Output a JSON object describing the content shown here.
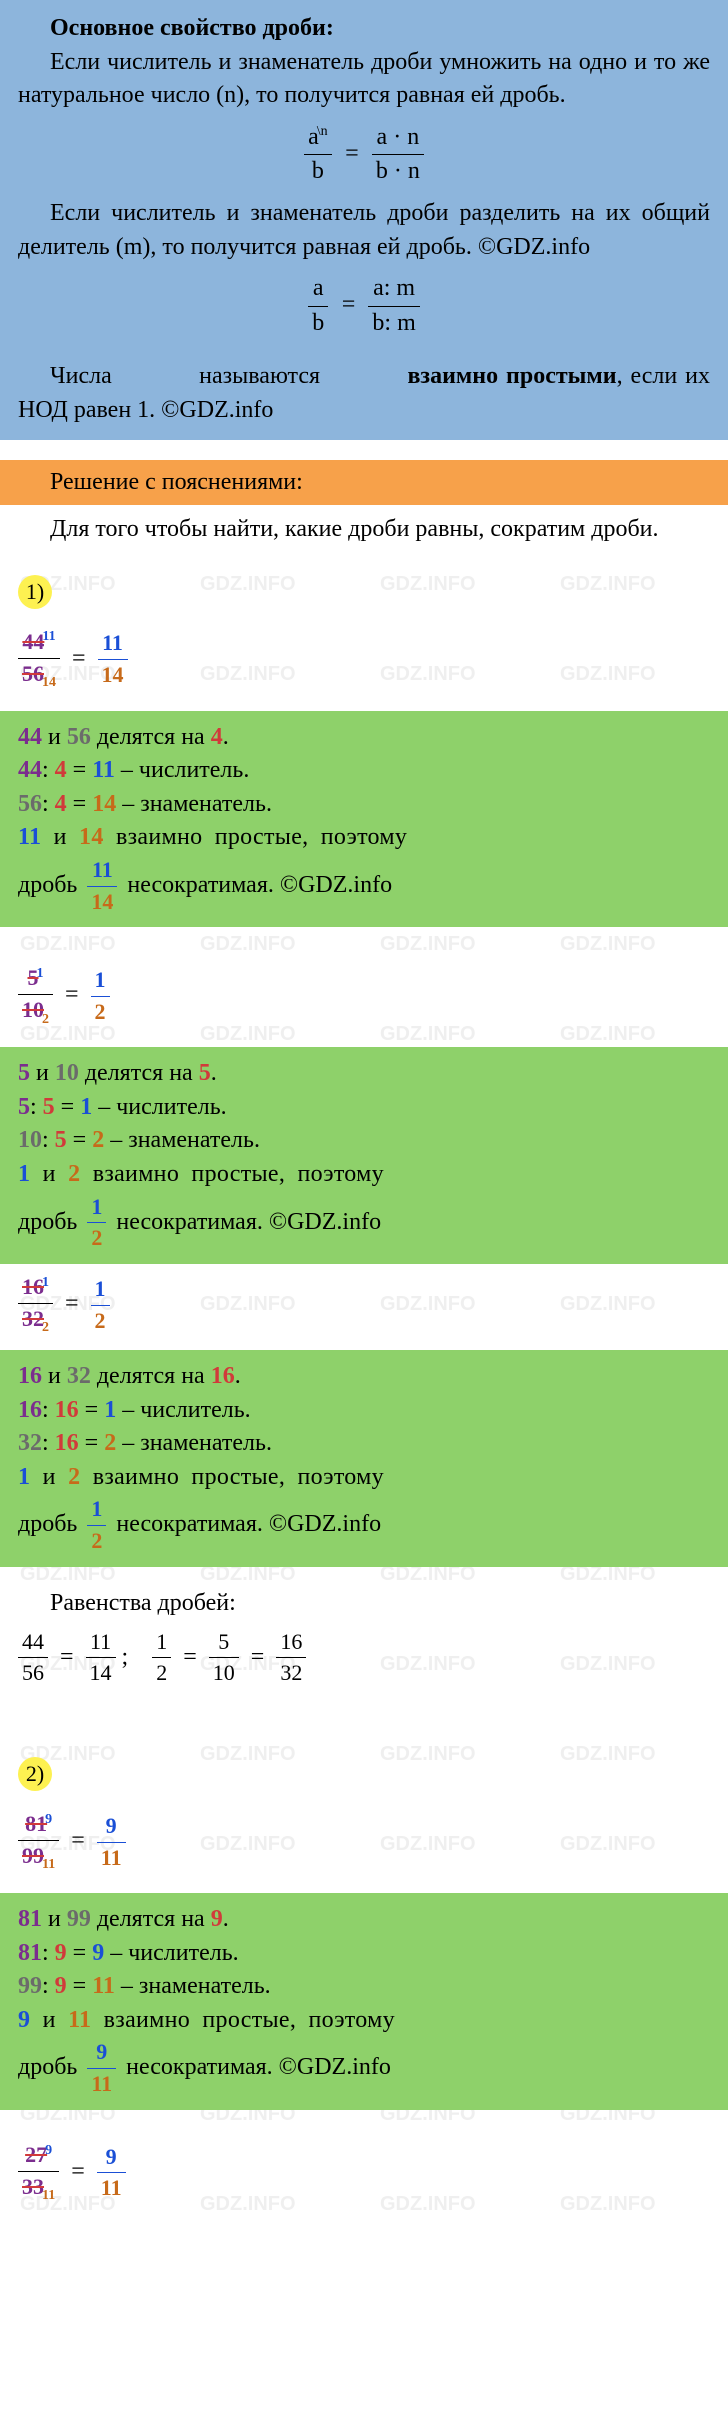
{
  "blue": {
    "heading": "Основное свойство дроби:",
    "p1": "Если числитель и знаменатель дроби умножить на одно и то же натуральное число (n), то получится равная ей дробь.",
    "formula1": {
      "a": "a",
      "b": "b",
      "expn": "\\n",
      "right_num": "a · n",
      "right_den": "b · n"
    },
    "p2": "Если числитель и знаменатель дроби разделить на их общий делитель (m), то получится равная ей дробь. ©GDZ.info",
    "formula2": {
      "left_num": "a",
      "left_den": "b",
      "right_num": "a: m",
      "right_den": "b: m"
    },
    "p3_pre": "Числа",
    "p3_mid": "называются",
    "p3_bold": "взаимно простыми",
    "p3_after": ", если их НОД равен 1. ©GDZ.info"
  },
  "orange": {
    "title": "Решение с пояснениями:"
  },
  "intro": "Для того чтобы найти, какие дроби равны, сократим дроби.",
  "item1": {
    "label": "1)",
    "frac1": {
      "num_strike": "44",
      "num_sup": "11",
      "den_strike": "56",
      "den_sub": "14",
      "eq_num": "11",
      "eq_den": "14"
    },
    "g1_l1_a": "44",
    "g1_l1_b": "56",
    "g1_l1_txt": "делятся на",
    "g1_l1_d": "4",
    "g1_l2_a": "44",
    "g1_l2_d": "4",
    "g1_l2_r": "11",
    "g1_l2_suffix": "– числитель.",
    "g1_l3_a": "56",
    "g1_l3_d": "4",
    "g1_l3_r": "14",
    "g1_l3_suffix": "– знаменатель.",
    "g1_l4_a": "11",
    "g1_l4_b": "14",
    "g1_l4_txt": "взаимно простые, поэтому",
    "g1_l5_pre": "дробь",
    "g1_l5_num": "11",
    "g1_l5_den": "14",
    "g1_l5_suf": "несократимая. ©GDZ.info",
    "frac2": {
      "num_strike": "5",
      "num_sup": "1",
      "den_strike": "10",
      "den_sub": "2",
      "eq_num": "1",
      "eq_den": "2"
    },
    "g2_l1_a": "5",
    "g2_l1_b": "10",
    "g2_l1_txt": "делятся на",
    "g2_l1_d": "5",
    "g2_l2_a": "5",
    "g2_l2_d": "5",
    "g2_l2_r": "1",
    "g2_l2_suffix": "– числитель.",
    "g2_l3_a": "10",
    "g2_l3_d": "5",
    "g2_l3_r": "2",
    "g2_l3_suffix": "– знаменатель.",
    "g2_l4_a": "1",
    "g2_l4_b": "2",
    "g2_l4_txt": "взаимно простые, поэтому",
    "g2_l5_pre": "дробь",
    "g2_l5_num": "1",
    "g2_l5_den": "2",
    "g2_l5_suf": "несократимая. ©GDZ.info",
    "frac3": {
      "num_strike": "16",
      "num_sup": "1",
      "den_strike": "32",
      "den_sub": "2",
      "eq_num": "1",
      "eq_den": "2"
    },
    "g3_l1_a": "16",
    "g3_l1_b": "32",
    "g3_l1_txt": "делятся на",
    "g3_l1_d": "16",
    "g3_l2_a": "16",
    "g3_l2_d": "16",
    "g3_l2_r": "1",
    "g3_l2_suffix": "– числитель.",
    "g3_l3_a": "32",
    "g3_l3_d": "16",
    "g3_l3_r": "2",
    "g3_l3_suffix": "– знаменатель.",
    "g3_l4_a": "1",
    "g3_l4_b": "2",
    "g3_l4_txt": "взаимно простые, поэтому",
    "g3_l5_pre": "дробь",
    "g3_l5_num": "1",
    "g3_l5_den": "2",
    "g3_l5_suf": "несократимая. ©GDZ.info",
    "eq_title": "Равенства дробей:",
    "eq_line": {
      "f1n": "44",
      "f1d": "56",
      "f2n": "11",
      "f2d": "14",
      "f3n": "1",
      "f3d": "2",
      "f4n": "5",
      "f4d": "10",
      "f5n": "16",
      "f5d": "32"
    }
  },
  "item2": {
    "label": "2)",
    "frac1": {
      "num_strike": "81",
      "num_sup": "9",
      "den_strike": "99",
      "den_sub": "11",
      "eq_num": "9",
      "eq_den": "11"
    },
    "g1_l1_a": "81",
    "g1_l1_b": "99",
    "g1_l1_txt": "делятся на",
    "g1_l1_d": "9",
    "g1_l2_a": "81",
    "g1_l2_d": "9",
    "g1_l2_r": "9",
    "g1_l2_suffix": "– числитель.",
    "g1_l3_a": "99",
    "g1_l3_d": "9",
    "g1_l3_r": "11",
    "g1_l3_suffix": "– знаменатель.",
    "g1_l4_a": "9",
    "g1_l4_b": "11",
    "g1_l4_txt": "взаимно простые, поэтому",
    "g1_l5_pre": "дробь",
    "g1_l5_num": "9",
    "g1_l5_den": "11",
    "g1_l5_suf": "несократимая. ©GDZ.info",
    "frac2": {
      "num_strike": "27",
      "num_sup": "9",
      "den_strike": "33",
      "den_sub": "11",
      "eq_num": "9",
      "eq_den": "11"
    }
  },
  "colors": {
    "blue_box": "#8db5dc",
    "orange_strip": "#f7a14a",
    "green_box": "#8ed16a",
    "circ_bg": "#fdf151",
    "purple": "#7b2d8e",
    "gray": "#6b6b6b",
    "red": "#d13a3a",
    "blue": "#1a4fd6",
    "orange": "#c76a1a"
  }
}
